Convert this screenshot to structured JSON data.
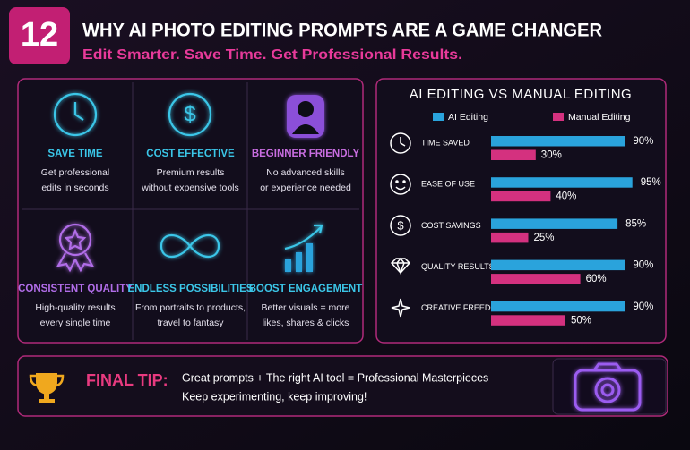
{
  "header": {
    "badge": "12",
    "title": "WHY AI PHOTO EDITING PROMPTS ARE A GAME CHANGER",
    "subtitle": "Edit Smarter. Save Time. Get Professional Results."
  },
  "features": [
    {
      "title": "SAVE TIME",
      "desc": [
        "Get professional",
        "edits in seconds"
      ]
    },
    {
      "title": "COST EFFECTIVE",
      "desc": [
        "Premium results",
        "without expensive tools"
      ]
    },
    {
      "title": "BEGINNER FRIENDLY",
      "desc": [
        "No advanced skills",
        "or experience needed"
      ]
    },
    {
      "title": "CONSISTENT QUALITY",
      "desc": [
        "High-quality results",
        "every single time"
      ]
    },
    {
      "title": "ENDLESS POSSIBILITIES",
      "desc": [
        "From portraits to products,",
        "travel to fantasy"
      ]
    },
    {
      "title": "BOOST ENGAGEMENT",
      "desc": [
        "Better visuals = more",
        "likes, shares & clicks"
      ]
    }
  ],
  "chart_data": {
    "type": "bar",
    "orientation": "horizontal",
    "title": "AI EDITING VS MANUAL EDITING",
    "categories": [
      "TIME SAVED",
      "EASE OF USE",
      "COST SAVINGS",
      "QUALITY RESULTS",
      "CREATIVE FREEDOM"
    ],
    "series": [
      {
        "name": "AI Editing",
        "color": "#2aa3dc",
        "values": [
          90,
          95,
          85,
          90,
          90
        ],
        "value_labels": [
          "90%",
          "95%",
          "85%",
          "90%",
          "90%"
        ]
      },
      {
        "name": "Manual Editing",
        "color": "#d4317f",
        "values": [
          30,
          40,
          25,
          60,
          50
        ],
        "value_labels": [
          "30%",
          "40%",
          "25%",
          "60%",
          "50%"
        ]
      }
    ]
  },
  "final_tip": {
    "label": "FINAL TIP:",
    "lines": [
      "Great prompts + The right AI tool = Professional Masterpieces",
      "Keep experimenting, keep improving!"
    ]
  }
}
